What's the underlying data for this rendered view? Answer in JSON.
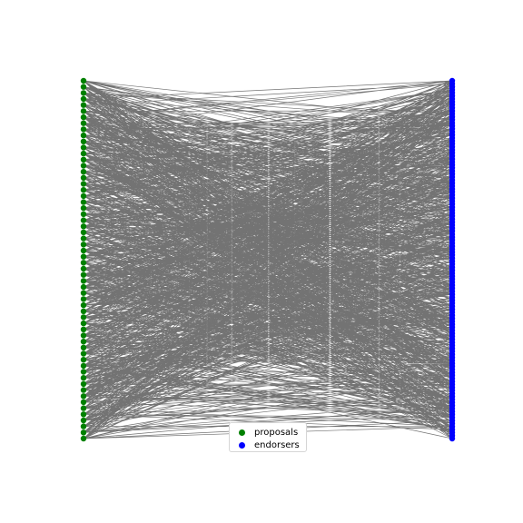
{
  "diagram": {
    "type": "bipartite-graph",
    "left_group": {
      "name": "proposals",
      "color": "#008000"
    },
    "right_group": {
      "name": "endorsers",
      "color": "#0000ff"
    },
    "edge_color": "#000000"
  },
  "legend": {
    "entries": [
      {
        "label": "proposals",
        "color": "#008000"
      },
      {
        "label": "endorsers",
        "color": "#0000ff"
      }
    ]
  }
}
